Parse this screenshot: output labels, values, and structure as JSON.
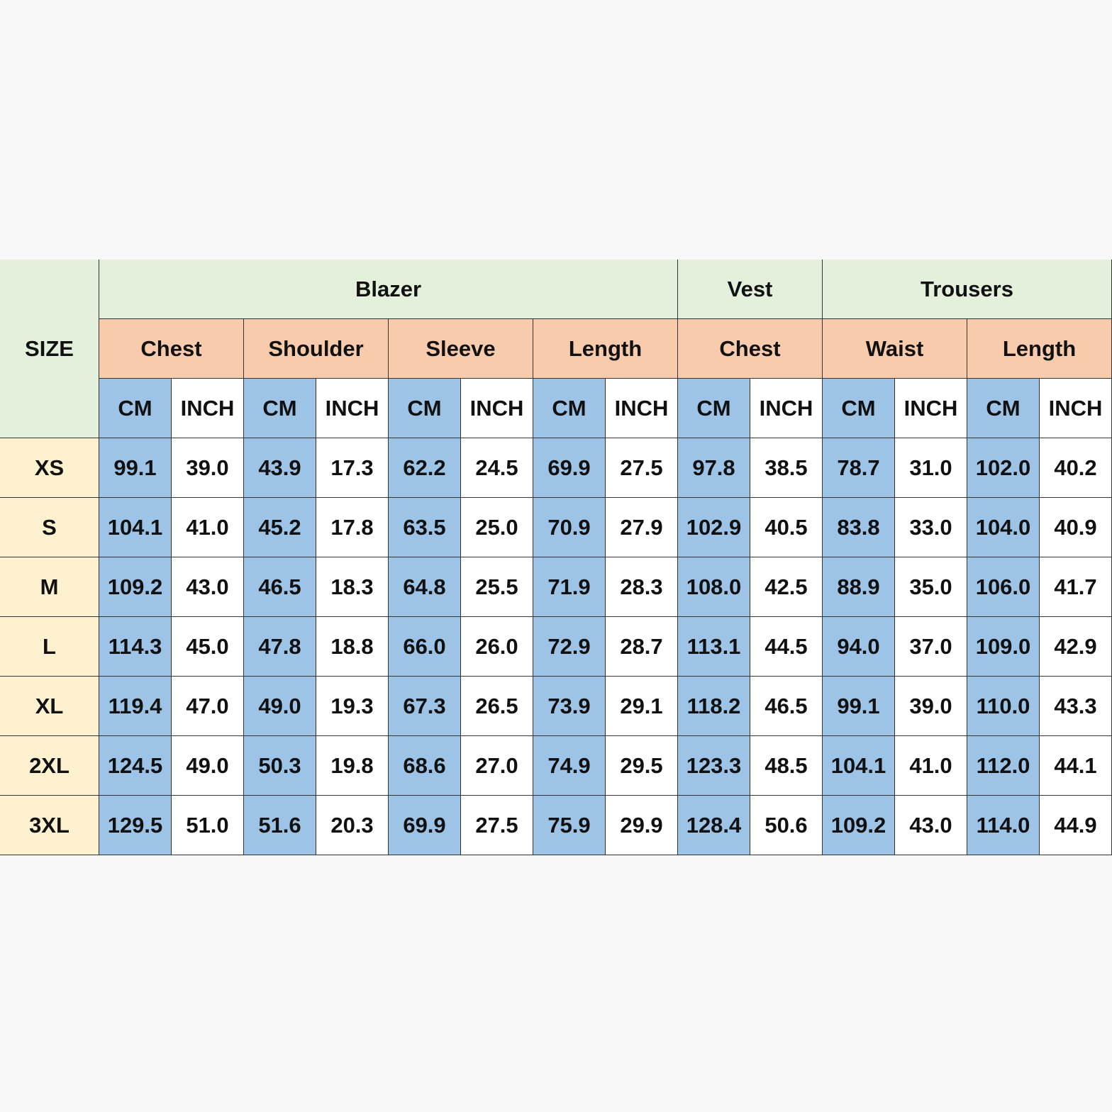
{
  "table": {
    "corner": "SIZE",
    "groups": [
      {
        "name": "Blazer",
        "columns": [
          {
            "name": "Chest",
            "units": [
              "CM",
              "INCH"
            ]
          },
          {
            "name": "Shoulder",
            "units": [
              "CM",
              "INCH"
            ]
          },
          {
            "name": "Sleeve",
            "units": [
              "CM",
              "INCH"
            ]
          },
          {
            "name": "Length",
            "units": [
              "CM",
              "INCH"
            ]
          }
        ]
      },
      {
        "name": "Vest",
        "columns": [
          {
            "name": "Chest",
            "units": [
              "CM",
              "INCH"
            ]
          }
        ]
      },
      {
        "name": "Trousers",
        "columns": [
          {
            "name": "Waist",
            "units": [
              "CM",
              "INCH"
            ]
          },
          {
            "name": "Length",
            "units": [
              "CM",
              "INCH"
            ]
          }
        ]
      }
    ],
    "rows": [
      [
        "XS",
        "99.1",
        "39.0",
        "43.9",
        "17.3",
        "62.2",
        "24.5",
        "69.9",
        "27.5",
        "97.8",
        "38.5",
        "78.7",
        "31.0",
        "102.0",
        "40.2"
      ],
      [
        "S",
        "104.1",
        "41.0",
        "45.2",
        "17.8",
        "63.5",
        "25.0",
        "70.9",
        "27.9",
        "102.9",
        "40.5",
        "83.8",
        "33.0",
        "104.0",
        "40.9"
      ],
      [
        "M",
        "109.2",
        "43.0",
        "46.5",
        "18.3",
        "64.8",
        "25.5",
        "71.9",
        "28.3",
        "108.0",
        "42.5",
        "88.9",
        "35.0",
        "106.0",
        "41.7"
      ],
      [
        "L",
        "114.3",
        "45.0",
        "47.8",
        "18.8",
        "66.0",
        "26.0",
        "72.9",
        "28.7",
        "113.1",
        "44.5",
        "94.0",
        "37.0",
        "109.0",
        "42.9"
      ],
      [
        "XL",
        "119.4",
        "47.0",
        "49.0",
        "19.3",
        "67.3",
        "26.5",
        "73.9",
        "29.1",
        "118.2",
        "46.5",
        "99.1",
        "39.0",
        "110.0",
        "43.3"
      ],
      [
        "2XL",
        "124.5",
        "49.0",
        "50.3",
        "19.8",
        "68.6",
        "27.0",
        "74.9",
        "29.5",
        "123.3",
        "48.5",
        "104.1",
        "41.0",
        "112.0",
        "44.1"
      ],
      [
        "3XL",
        "129.5",
        "51.0",
        "51.6",
        "20.3",
        "69.9",
        "27.5",
        "75.9",
        "29.9",
        "128.4",
        "50.6",
        "109.2",
        "43.0",
        "114.0",
        "44.9"
      ]
    ]
  }
}
